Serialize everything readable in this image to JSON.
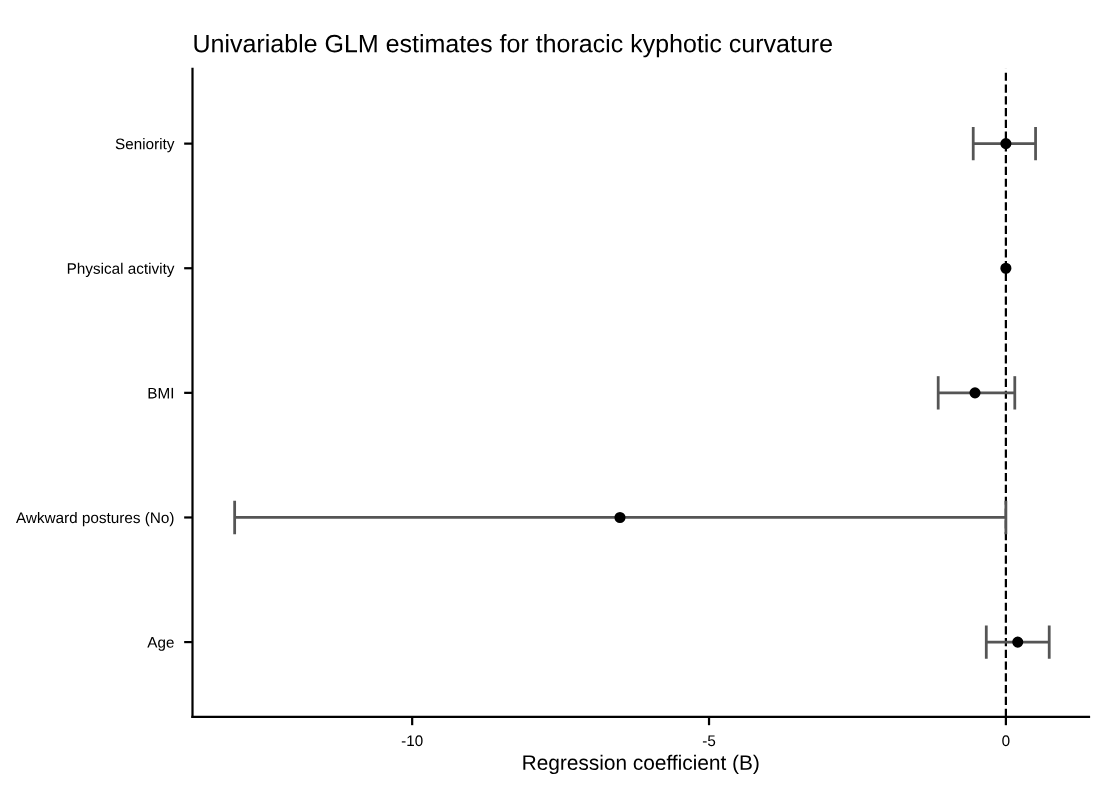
{
  "chart_data": {
    "type": "scatter",
    "orientation": "horizontal",
    "title": "Univariable GLM estimates for thoracic kyphotic curvature",
    "xlabel": "Regression coefficient (B)",
    "categories": [
      "Seniority",
      "Physical activity",
      "BMI",
      "Awkward postures (No)",
      "Age"
    ],
    "color": "#000000",
    "values": [
      0.0,
      0.0,
      -0.52,
      -6.5,
      0.2
    ],
    "errors": [
      [
        -0.55,
        0.5
      ],
      null,
      [
        -1.14,
        0.15
      ],
      [
        -12.99,
        0.0
      ],
      [
        -0.33,
        0.73
      ]
    ],
    "xlim": [
      -13.7,
      1.4
    ],
    "xticks": [
      -10,
      -5,
      0
    ],
    "ref_lines": [
      {
        "axis": "x",
        "value": 0,
        "line_style": "dashed",
        "color": "#000000"
      }
    ],
    "marker": "circle",
    "grid": false,
    "legend": false
  }
}
